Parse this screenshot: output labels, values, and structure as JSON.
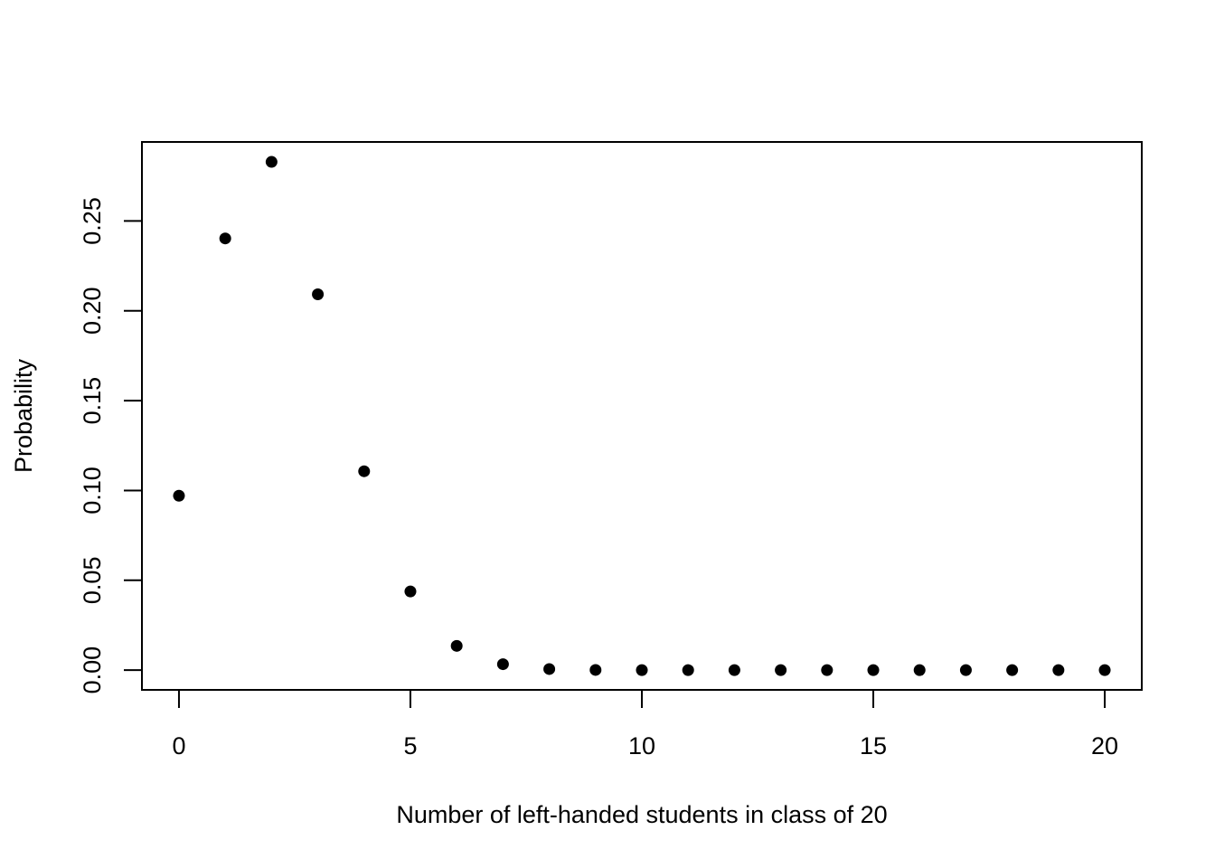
{
  "chart_data": {
    "type": "scatter",
    "title": "",
    "xlabel": "Number of left-handed students in class of 20",
    "ylabel": "Probability",
    "x": [
      0,
      1,
      2,
      3,
      4,
      5,
      6,
      7,
      8,
      9,
      10,
      11,
      12,
      13,
      14,
      15,
      16,
      17,
      18,
      19,
      20
    ],
    "y": [
      0.0971,
      0.2403,
      0.2829,
      0.2092,
      0.1107,
      0.0438,
      0.0135,
      0.0033,
      0.0006,
      0.0001,
      0.0,
      0.0,
      0.0,
      0.0,
      0.0,
      0.0,
      0.0,
      0.0,
      0.0,
      0.0,
      0.0
    ],
    "xlim": [
      -0.8,
      20.8
    ],
    "ylim": [
      -0.011,
      0.294
    ],
    "xticks": [
      0,
      5,
      10,
      15,
      20
    ],
    "xtick_labels": [
      "0",
      "5",
      "10",
      "15",
      "20"
    ],
    "yticks": [
      0.0,
      0.05,
      0.1,
      0.15,
      0.2,
      0.25
    ],
    "ytick_labels": [
      "0.00",
      "0.05",
      "0.10",
      "0.15",
      "0.20",
      "0.25"
    ],
    "grid": false,
    "legend": "none",
    "marker_color": "#000000",
    "frame_color": "#000000"
  }
}
